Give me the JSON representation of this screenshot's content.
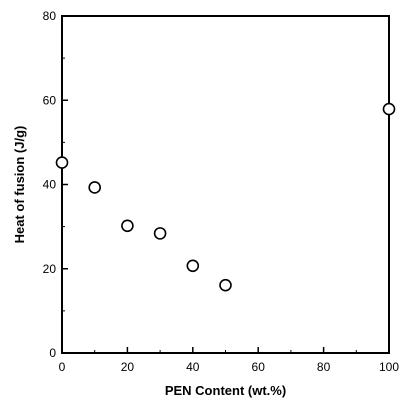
{
  "chart_data": {
    "type": "scatter",
    "title": "",
    "xlabel": "PEN Content (wt.%)",
    "ylabel": "Heat of fusion (J/g)",
    "xlim": [
      0,
      100
    ],
    "ylim": [
      0,
      80
    ],
    "xticks": [
      0,
      20,
      40,
      60,
      80,
      100
    ],
    "yticks": [
      0,
      20,
      40,
      60,
      80
    ],
    "grid": false,
    "marker": "open-circle",
    "series": [
      {
        "x": [
          0,
          10,
          20,
          30,
          40,
          50,
          100
        ],
        "y": [
          45.2,
          39.3,
          30.2,
          28.4,
          20.7,
          16.1,
          57.9
        ]
      }
    ]
  }
}
